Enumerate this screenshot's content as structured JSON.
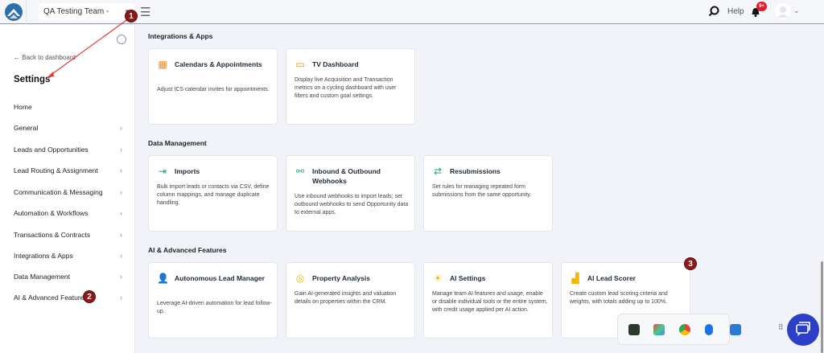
{
  "topbar": {
    "team": "QA Testing Team - PRO...",
    "help": "Help",
    "notifications": "9+"
  },
  "sidebar": {
    "back": "Back to dashboard",
    "title": "Settings",
    "items": [
      {
        "label": "Home"
      },
      {
        "label": "General"
      },
      {
        "label": "Leads and Opportunities"
      },
      {
        "label": "Lead Routing & Assignment"
      },
      {
        "label": "Communication & Messaging"
      },
      {
        "label": "Automation & Workflows"
      },
      {
        "label": "Transactions & Contracts"
      },
      {
        "label": "Integrations & Apps"
      },
      {
        "label": "Data Management"
      },
      {
        "label": "AI & Advanced Features"
      }
    ]
  },
  "sections": [
    {
      "title": "Integrations & Apps",
      "cards": [
        {
          "title": "Calendars & Appointments",
          "desc": "Adjust ICS calendar invites for appointments.",
          "icon": "calendar-icon",
          "color": "#f08a24"
        },
        {
          "title": "TV Dashboard",
          "desc": "Display live Acquisition and Transaction metrics on a cycling dashboard with user filters and custom goal settings.",
          "icon": "tv-icon",
          "color": "#f08a24"
        }
      ]
    },
    {
      "title": "Data Management",
      "cards": [
        {
          "title": "Imports",
          "desc": "Bulk import leads or contacts via CSV, define column mappings, and manage duplicate handling.",
          "icon": "import-icon",
          "color": "#1f9e8f"
        },
        {
          "title": "Inbound & Outbound Webhooks",
          "desc": "Use inbound webhooks to import leads; set outbound webhooks to send Opportunity data to external apps.",
          "icon": "webhook-icon",
          "color": "#1f9e8f"
        },
        {
          "title": "Resubmissions",
          "desc": "Set rules for managing repeated form submissions from the same opportunity.",
          "icon": "refresh-icon",
          "color": "#1f9e8f"
        }
      ]
    },
    {
      "title": "AI & Advanced Features",
      "cards": [
        {
          "title": "Autonomous Lead Manager",
          "desc": "Leverage AI-driven automation for lead follow-up.",
          "icon": "user-ai-icon",
          "color": "#f2b705"
        },
        {
          "title": "Property Analysis",
          "desc": "Gain AI-generated insights and valuation details on properties within the CRM.",
          "icon": "analysis-icon",
          "color": "#f2b705"
        },
        {
          "title": "AI Settings",
          "desc": "Manage team AI features and usage, enable or disable individual tools or the entire system, with credit usage applied per AI action.",
          "icon": "ai-settings-icon",
          "color": "#f2b705"
        },
        {
          "title": "AI Lead Scorer",
          "desc": "Create custom lead scoring criteria and weights, with totals adding up to 100%.",
          "icon": "scorer-icon",
          "color": "#f2b705"
        }
      ]
    }
  ],
  "annotations": [
    "1",
    "2",
    "3"
  ]
}
